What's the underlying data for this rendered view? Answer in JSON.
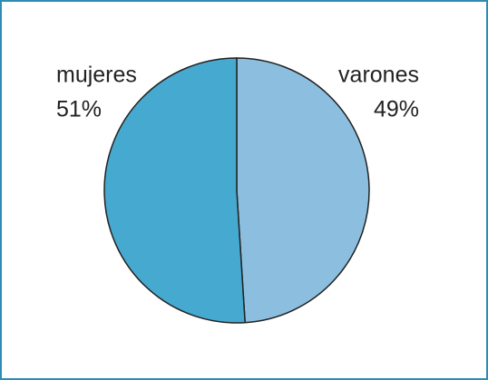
{
  "chart_data": {
    "type": "pie",
    "categories": [
      "varones",
      "mujeres"
    ],
    "values": [
      49,
      51
    ],
    "value_labels": [
      "49%",
      "51%"
    ],
    "colors": [
      "#8cbfdf",
      "#46a9d0"
    ]
  }
}
